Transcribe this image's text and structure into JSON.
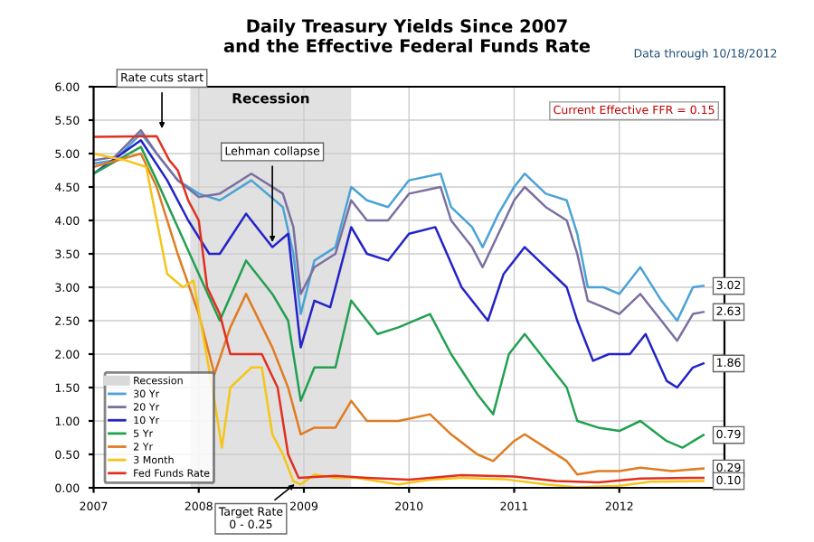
{
  "chart_data": {
    "type": "line",
    "title": "Daily Treasury Yields Since 2007\nand the Effective Federal Funds Rate",
    "xlim": [
      2007,
      2013
    ],
    "xticks": [
      2007,
      2008,
      2009,
      2010,
      2011,
      2012
    ],
    "ylim": [
      0,
      6
    ],
    "yticks": [
      {
        "value": 0,
        "label": "0.00"
      },
      {
        "value": 0.5,
        "label": "0.50"
      },
      {
        "value": 1,
        "label": "1.00"
      },
      {
        "value": 1.5,
        "label": "1.50"
      },
      {
        "value": 2,
        "label": "2.00"
      },
      {
        "value": 2.5,
        "label": "2.50"
      },
      {
        "value": 3,
        "label": "3.00"
      },
      {
        "value": 3.5,
        "label": "3.50"
      },
      {
        "value": 4,
        "label": "4.00"
      },
      {
        "value": 4.5,
        "label": "4.50"
      },
      {
        "value": 5,
        "label": "5.00"
      },
      {
        "value": 5.5,
        "label": "5.50"
      },
      {
        "value": 6,
        "label": "6.00"
      }
    ],
    "grid": true,
    "legend": "bottom left",
    "bands": [
      {
        "axis": "x",
        "from": 2007.92,
        "to": 2009.45,
        "label": "Recession",
        "color": "#d9d9d9"
      }
    ],
    "series": [
      {
        "name": "30 Yr",
        "color": "#4aa3d6",
        "x": [
          2007,
          2007.2,
          2007.45,
          2007.6,
          2007.8,
          2008.0,
          2008.2,
          2008.5,
          2008.8,
          2008.9,
          2008.97,
          2009.1,
          2009.3,
          2009.45,
          2009.6,
          2009.8,
          2010.0,
          2010.3,
          2010.4,
          2010.6,
          2010.7,
          2010.85,
          2011.0,
          2011.1,
          2011.3,
          2011.5,
          2011.6,
          2011.7,
          2011.85,
          2012.0,
          2012.2,
          2012.4,
          2012.55,
          2012.7,
          2012.8
        ],
        "values": [
          4.85,
          4.9,
          5.3,
          5.0,
          4.6,
          4.4,
          4.3,
          4.6,
          4.2,
          3.5,
          2.6,
          3.4,
          3.6,
          4.5,
          4.3,
          4.2,
          4.6,
          4.7,
          4.2,
          3.9,
          3.6,
          4.1,
          4.5,
          4.7,
          4.4,
          4.3,
          3.8,
          3.0,
          3.0,
          2.9,
          3.3,
          2.8,
          2.5,
          3.0,
          3.02
        ]
      },
      {
        "name": "20 Yr",
        "color": "#7b6fa0",
        "x": [
          2007,
          2007.2,
          2007.45,
          2007.6,
          2007.8,
          2008.0,
          2008.2,
          2008.5,
          2008.8,
          2008.9,
          2008.97,
          2009.1,
          2009.3,
          2009.45,
          2009.6,
          2009.8,
          2010.0,
          2010.3,
          2010.4,
          2010.6,
          2010.7,
          2010.85,
          2011.0,
          2011.1,
          2011.3,
          2011.5,
          2011.6,
          2011.7,
          2011.85,
          2012.0,
          2012.2,
          2012.4,
          2012.55,
          2012.7,
          2012.8
        ],
        "values": [
          4.9,
          4.95,
          5.35,
          5.0,
          4.6,
          4.35,
          4.4,
          4.7,
          4.4,
          3.9,
          2.9,
          3.3,
          3.5,
          4.3,
          4.0,
          4.0,
          4.4,
          4.5,
          4.0,
          3.6,
          3.3,
          3.8,
          4.3,
          4.5,
          4.2,
          4.0,
          3.5,
          2.8,
          2.7,
          2.6,
          2.9,
          2.5,
          2.2,
          2.6,
          2.63
        ]
      },
      {
        "name": "10 Yr",
        "color": "#2323c8",
        "x": [
          2007,
          2007.45,
          2007.7,
          2007.9,
          2008.1,
          2008.2,
          2008.45,
          2008.7,
          2008.85,
          2008.97,
          2009.1,
          2009.25,
          2009.45,
          2009.6,
          2009.8,
          2010.0,
          2010.25,
          2010.5,
          2010.75,
          2010.9,
          2011.1,
          2011.3,
          2011.5,
          2011.6,
          2011.75,
          2011.9,
          2012.1,
          2012.25,
          2012.45,
          2012.55,
          2012.7,
          2012.8
        ],
        "values": [
          4.7,
          5.2,
          4.6,
          4.0,
          3.5,
          3.5,
          4.1,
          3.6,
          3.8,
          2.1,
          2.8,
          2.7,
          3.9,
          3.5,
          3.4,
          3.8,
          3.9,
          3.0,
          2.5,
          3.2,
          3.6,
          3.3,
          3.0,
          2.5,
          1.9,
          2.0,
          2.0,
          2.3,
          1.6,
          1.5,
          1.8,
          1.86
        ]
      },
      {
        "name": "5 Yr",
        "color": "#22a050",
        "x": [
          2007,
          2007.45,
          2007.6,
          2007.8,
          2008.0,
          2008.2,
          2008.45,
          2008.7,
          2008.85,
          2008.97,
          2009.1,
          2009.3,
          2009.45,
          2009.7,
          2009.9,
          2010.2,
          2010.4,
          2010.65,
          2010.8,
          2010.95,
          2011.1,
          2011.3,
          2011.5,
          2011.6,
          2011.8,
          2012.0,
          2012.2,
          2012.45,
          2012.6,
          2012.8
        ],
        "values": [
          4.7,
          5.1,
          4.6,
          3.9,
          3.2,
          2.5,
          3.4,
          2.9,
          2.5,
          1.3,
          1.8,
          1.8,
          2.8,
          2.3,
          2.4,
          2.6,
          2.0,
          1.4,
          1.1,
          2.0,
          2.3,
          1.9,
          1.5,
          1.0,
          0.9,
          0.85,
          1.0,
          0.7,
          0.6,
          0.79
        ]
      },
      {
        "name": "2 Yr",
        "color": "#e07b22",
        "x": [
          2007,
          2007.45,
          2007.6,
          2007.8,
          2008.0,
          2008.15,
          2008.3,
          2008.45,
          2008.7,
          2008.85,
          2008.97,
          2009.1,
          2009.3,
          2009.45,
          2009.6,
          2009.9,
          2010.2,
          2010.4,
          2010.65,
          2010.8,
          2011.0,
          2011.1,
          2011.3,
          2011.5,
          2011.6,
          2011.8,
          2012.0,
          2012.2,
          2012.5,
          2012.8
        ],
        "values": [
          4.8,
          5.0,
          4.5,
          3.5,
          2.6,
          1.7,
          2.4,
          2.9,
          2.1,
          1.5,
          0.8,
          0.9,
          0.9,
          1.3,
          1.0,
          1.0,
          1.1,
          0.8,
          0.5,
          0.4,
          0.7,
          0.8,
          0.6,
          0.4,
          0.2,
          0.25,
          0.25,
          0.3,
          0.25,
          0.29
        ]
      },
      {
        "name": "3 Month",
        "color": "#f5c518",
        "x": [
          2007,
          2007.3,
          2007.5,
          2007.6,
          2007.7,
          2007.85,
          2007.95,
          2008.05,
          2008.15,
          2008.22,
          2008.3,
          2008.5,
          2008.6,
          2008.7,
          2008.8,
          2008.9,
          2008.97,
          2009.1,
          2009.3,
          2009.5,
          2009.9,
          2010.2,
          2010.5,
          2010.9,
          2011.3,
          2011.6,
          2012.0,
          2012.3,
          2012.8
        ],
        "values": [
          5.0,
          4.9,
          4.8,
          4.0,
          3.2,
          3.0,
          3.1,
          2.2,
          1.3,
          0.6,
          1.5,
          1.8,
          1.8,
          0.8,
          0.5,
          0.1,
          0.05,
          0.2,
          0.15,
          0.15,
          0.05,
          0.12,
          0.15,
          0.13,
          0.05,
          0.01,
          0.03,
          0.09,
          0.1
        ]
      },
      {
        "name": "Fed Funds Rate",
        "color": "#e03020",
        "x": [
          2007,
          2007.6,
          2007.72,
          2007.8,
          2007.9,
          2008.0,
          2008.08,
          2008.2,
          2008.3,
          2008.6,
          2008.75,
          2008.85,
          2008.95,
          2009.3,
          2009.6,
          2010.0,
          2010.5,
          2011.0,
          2011.4,
          2011.8,
          2012.2,
          2012.8
        ],
        "values": [
          5.25,
          5.26,
          4.9,
          4.75,
          4.3,
          4.0,
          3.0,
          2.6,
          2.0,
          2.0,
          1.5,
          0.5,
          0.15,
          0.18,
          0.15,
          0.12,
          0.19,
          0.17,
          0.1,
          0.08,
          0.14,
          0.15
        ]
      }
    ],
    "annotations": [
      "Data through 10/18/2012",
      "Current Effective FFR = 0.15",
      {
        "text": "Rate cuts start",
        "x": 2007.65,
        "y": 5.3
      },
      {
        "text": "Lehman collapse",
        "x": 2008.7,
        "y": 3.6
      },
      {
        "text": "Target Rate\n0 - 0.25",
        "x": 2008.95,
        "y": 0.1
      },
      {
        "text": "3.02",
        "x": 2012.8,
        "y": 3.02
      },
      {
        "text": "2.63",
        "x": 2012.8,
        "y": 2.63
      },
      {
        "text": "1.86",
        "x": 2012.8,
        "y": 1.86
      },
      {
        "text": "0.79",
        "x": 2012.8,
        "y": 0.79
      },
      {
        "text": "0.29",
        "x": 2012.8,
        "y": 0.29
      },
      {
        "text": "0.10",
        "x": 2012.8,
        "y": 0.1
      }
    ]
  }
}
